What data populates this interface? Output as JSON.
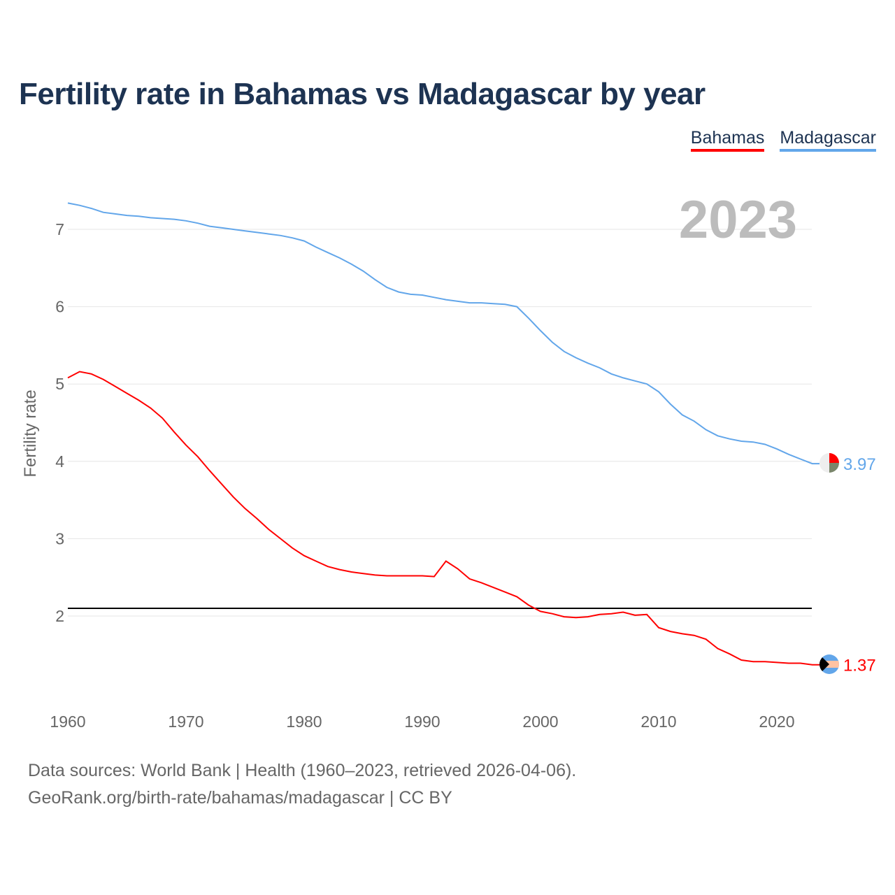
{
  "title": "Fertility rate in Bahamas vs Madagascar by year",
  "legend": [
    {
      "label": "Bahamas",
      "color": "#ff0000"
    },
    {
      "label": "Madagascar",
      "color": "#62a6ea"
    }
  ],
  "year_watermark": "2023",
  "footer": {
    "line1": "Data sources: World Bank | Health (1960–2023, retrieved 2026-04-06).",
    "line2": "GeoRank.org/birth-rate/bahamas/madagascar | CC BY"
  },
  "chart_data": {
    "type": "line",
    "title": "Fertility rate in Bahamas vs Madagascar by year",
    "xlabel": "",
    "ylabel": "Fertility rate",
    "xlim": [
      1960,
      2023
    ],
    "ylim": [
      1.2,
      7.45
    ],
    "x_ticks": [
      "1960",
      "1970",
      "1980",
      "1990",
      "2000",
      "2010",
      "2020"
    ],
    "y_ticks": [
      "2",
      "3",
      "4",
      "5",
      "6",
      "7"
    ],
    "grid": true,
    "legend_position": "top-right",
    "reference_line": {
      "value": 2.1,
      "color": "#000000"
    },
    "x": [
      1960,
      1961,
      1962,
      1963,
      1964,
      1965,
      1966,
      1967,
      1968,
      1969,
      1970,
      1971,
      1972,
      1973,
      1974,
      1975,
      1976,
      1977,
      1978,
      1979,
      1980,
      1981,
      1982,
      1983,
      1984,
      1985,
      1986,
      1987,
      1988,
      1989,
      1990,
      1991,
      1992,
      1993,
      1994,
      1995,
      1996,
      1997,
      1998,
      1999,
      2000,
      2001,
      2002,
      2003,
      2004,
      2005,
      2006,
      2007,
      2008,
      2009,
      2010,
      2011,
      2012,
      2013,
      2014,
      2015,
      2016,
      2017,
      2018,
      2019,
      2020,
      2021,
      2022,
      2023
    ],
    "series": [
      {
        "name": "Bahamas",
        "color": "#ff0000",
        "end_label": "1.37",
        "values": [
          5.08,
          5.16,
          5.13,
          5.06,
          4.97,
          4.88,
          4.79,
          4.69,
          4.56,
          4.38,
          4.21,
          4.06,
          3.88,
          3.71,
          3.54,
          3.39,
          3.26,
          3.12,
          3.0,
          2.88,
          2.78,
          2.71,
          2.64,
          2.6,
          2.57,
          2.55,
          2.53,
          2.52,
          2.52,
          2.52,
          2.52,
          2.51,
          2.71,
          2.61,
          2.48,
          2.43,
          2.37,
          2.31,
          2.25,
          2.14,
          2.06,
          2.03,
          1.99,
          1.98,
          1.99,
          2.02,
          2.03,
          2.05,
          2.01,
          2.02,
          1.85,
          1.8,
          1.77,
          1.75,
          1.7,
          1.58,
          1.51,
          1.43,
          1.41,
          1.41,
          1.4,
          1.39,
          1.39,
          1.37
        ]
      },
      {
        "name": "Madagascar",
        "color": "#62a6ea",
        "end_label": "3.97",
        "values": [
          7.34,
          7.31,
          7.27,
          7.22,
          7.2,
          7.18,
          7.17,
          7.15,
          7.14,
          7.13,
          7.11,
          7.08,
          7.04,
          7.02,
          7.0,
          6.98,
          6.96,
          6.94,
          6.92,
          6.89,
          6.85,
          6.77,
          6.7,
          6.63,
          6.55,
          6.46,
          6.35,
          6.25,
          6.19,
          6.16,
          6.15,
          6.12,
          6.09,
          6.07,
          6.05,
          6.05,
          6.04,
          6.03,
          6.0,
          5.85,
          5.69,
          5.54,
          5.42,
          5.34,
          5.27,
          5.21,
          5.13,
          5.08,
          5.04,
          5.0,
          4.9,
          4.74,
          4.6,
          4.52,
          4.41,
          4.33,
          4.29,
          4.26,
          4.25,
          4.22,
          4.16,
          4.09,
          4.03,
          3.97
        ]
      }
    ]
  }
}
